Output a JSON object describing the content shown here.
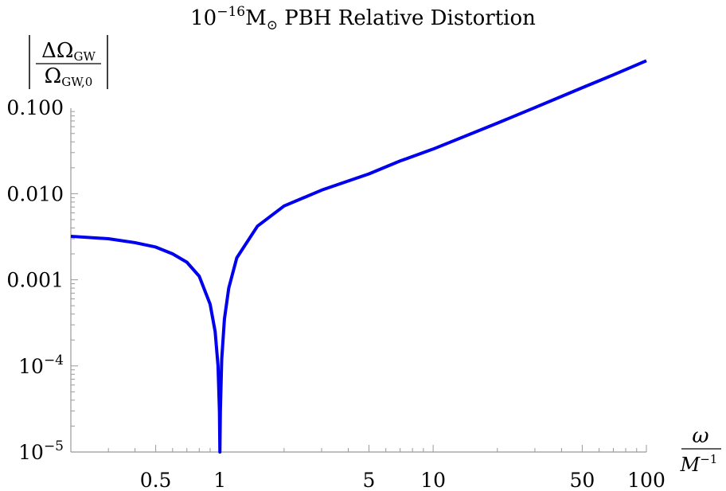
{
  "chart_data": {
    "type": "line",
    "title": {
      "prefix": "10",
      "exponent": "−16",
      "suffix": "M",
      "sun": "⊙",
      "rest": " PBH Relative Distortion"
    },
    "ylabel": {
      "numerator": "ΔΩ",
      "numerator_sub": "GW",
      "denominator": "Ω",
      "denominator_sub": "GW,0"
    },
    "xlabel": {
      "numerator": "ω",
      "denominator": "M",
      "denominator_exp": "−1"
    },
    "xscale": "log",
    "yscale": "log",
    "xlim": [
      0.2,
      100
    ],
    "ylim": [
      1e-05,
      1
    ],
    "x_ticks": [
      {
        "value": 0.5,
        "label": "0.5"
      },
      {
        "value": 1,
        "label": "1"
      },
      {
        "value": 5,
        "label": "5"
      },
      {
        "value": 10,
        "label": "10"
      },
      {
        "value": 50,
        "label": "50"
      },
      {
        "value": 100,
        "label": "100"
      }
    ],
    "y_ticks": [
      {
        "value": 1e-05,
        "base": "10",
        "exp": "−5"
      },
      {
        "value": 0.0001,
        "base": "10",
        "exp": "−4"
      },
      {
        "value": 0.001,
        "label": "0.001"
      },
      {
        "value": 0.01,
        "label": "0.010"
      },
      {
        "value": 0.1,
        "label": "0.100"
      }
    ],
    "series": [
      {
        "color": "#0000ee",
        "points": [
          [
            0.2,
            0.0032
          ],
          [
            0.3,
            0.003
          ],
          [
            0.4,
            0.0027
          ],
          [
            0.5,
            0.0024
          ],
          [
            0.6,
            0.002
          ],
          [
            0.7,
            0.0016
          ],
          [
            0.8,
            0.0011
          ],
          [
            0.9,
            0.00052
          ],
          [
            0.95,
            0.00025
          ],
          [
            0.98,
            0.0001
          ],
          [
            0.995,
            3e-05
          ],
          [
            1.0,
            1e-05
          ],
          [
            1.005,
            3e-05
          ],
          [
            1.02,
            0.00012
          ],
          [
            1.05,
            0.00035
          ],
          [
            1.1,
            0.0008
          ],
          [
            1.2,
            0.0018
          ],
          [
            1.5,
            0.0042
          ],
          [
            2,
            0.0072
          ],
          [
            3,
            0.011
          ],
          [
            5,
            0.017
          ],
          [
            7,
            0.024
          ],
          [
            10,
            0.033
          ],
          [
            20,
            0.066
          ],
          [
            30,
            0.1
          ],
          [
            50,
            0.17
          ],
          [
            70,
            0.24
          ],
          [
            100,
            0.35
          ]
        ]
      }
    ]
  }
}
